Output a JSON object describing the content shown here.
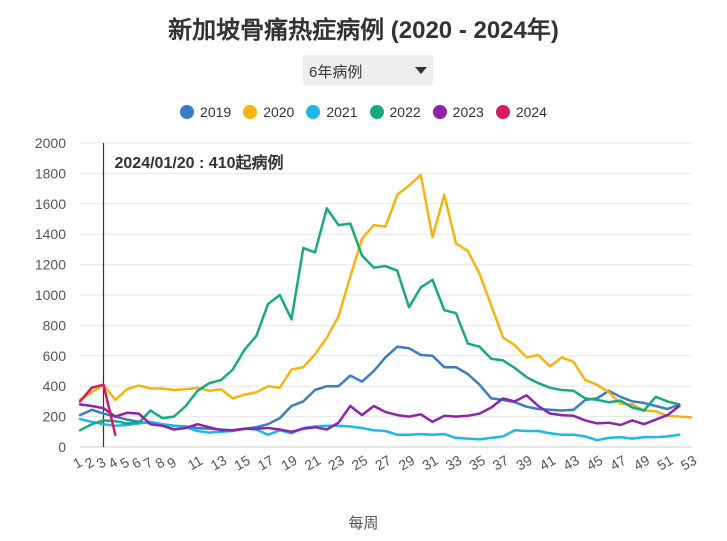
{
  "title": "新加坡骨痛热症病例 (2020 - 2024年)",
  "selector": {
    "value": "6年病例"
  },
  "colors": {
    "2019": "#3A7DC3",
    "2020": "#F7B30F",
    "2021": "#1FB6E8",
    "2022": "#18A97E",
    "2023": "#8E24AA",
    "2024": "#D81B60"
  },
  "chart_data": {
    "type": "line",
    "xlabel": "每周",
    "ylabel": "",
    "ylim": [
      0,
      2000
    ],
    "yticks": [
      0,
      200,
      400,
      600,
      800,
      1000,
      1200,
      1400,
      1600,
      1800,
      2000
    ],
    "xlim": [
      1,
      53
    ],
    "xticks": [
      1,
      2,
      3,
      4,
      5,
      6,
      7,
      8,
      9,
      11,
      13,
      15,
      17,
      19,
      21,
      23,
      25,
      27,
      29,
      31,
      33,
      35,
      37,
      39,
      41,
      43,
      45,
      47,
      49,
      51,
      53
    ],
    "grid": true,
    "legend": "top",
    "annotation": {
      "x": 3,
      "text": "2024/01/20 : 410起病例"
    },
    "series": [
      {
        "name": "2019",
        "x": [
          1,
          2,
          3,
          4,
          5,
          6,
          7,
          8,
          9,
          10,
          11,
          12,
          13,
          14,
          15,
          16,
          17,
          18,
          19,
          20,
          21,
          22,
          23,
          24,
          25,
          26,
          27,
          28,
          29,
          30,
          31,
          32,
          33,
          34,
          35,
          36,
          37,
          38,
          39,
          40,
          41,
          42,
          43,
          44,
          45,
          46,
          47,
          48,
          49,
          50,
          51,
          52
        ],
        "values": [
          210,
          245,
          220,
          200,
          180,
          165,
          155,
          150,
          140,
          135,
          125,
          120,
          115,
          110,
          120,
          130,
          150,
          190,
          270,
          300,
          375,
          400,
          400,
          470,
          430,
          500,
          590,
          660,
          650,
          605,
          600,
          525,
          525,
          480,
          410,
          320,
          310,
          295,
          265,
          250,
          245,
          240,
          245,
          310,
          320,
          370,
          330,
          300,
          290,
          270,
          250,
          280
        ]
      },
      {
        "name": "2020",
        "x": [
          1,
          2,
          3,
          4,
          5,
          6,
          7,
          8,
          9,
          10,
          11,
          12,
          13,
          14,
          15,
          16,
          17,
          18,
          19,
          20,
          21,
          22,
          23,
          24,
          25,
          26,
          27,
          28,
          29,
          30,
          31,
          32,
          33,
          34,
          35,
          36,
          37,
          38,
          39,
          40,
          41,
          42,
          43,
          44,
          45,
          46,
          47,
          48,
          49,
          50,
          51,
          52,
          53
        ],
        "values": [
          310,
          360,
          410,
          310,
          380,
          405,
          385,
          385,
          375,
          380,
          390,
          370,
          380,
          320,
          345,
          360,
          400,
          390,
          510,
          525,
          610,
          720,
          860,
          1120,
          1370,
          1460,
          1450,
          1660,
          1720,
          1790,
          1380,
          1660,
          1340,
          1290,
          1140,
          930,
          720,
          670,
          590,
          605,
          530,
          590,
          560,
          440,
          410,
          360,
          285,
          280,
          240,
          235,
          205,
          200,
          195
        ]
      },
      {
        "name": "2021",
        "x": [
          1,
          2,
          3,
          4,
          5,
          6,
          7,
          8,
          9,
          10,
          11,
          12,
          13,
          14,
          15,
          16,
          17,
          18,
          19,
          20,
          21,
          22,
          23,
          24,
          25,
          26,
          27,
          28,
          29,
          30,
          31,
          32,
          33,
          34,
          35,
          36,
          37,
          38,
          39,
          40,
          41,
          42,
          43,
          44,
          45,
          46,
          47,
          48,
          49,
          50,
          51,
          52
        ],
        "values": [
          185,
          165,
          150,
          140,
          145,
          155,
          165,
          150,
          140,
          130,
          105,
          95,
          100,
          105,
          120,
          115,
          80,
          110,
          90,
          125,
          135,
          140,
          140,
          135,
          125,
          110,
          105,
          80,
          80,
          85,
          80,
          85,
          60,
          55,
          50,
          60,
          70,
          110,
          105,
          105,
          90,
          80,
          80,
          70,
          45,
          60,
          65,
          55,
          65,
          65,
          70,
          80
        ]
      },
      {
        "name": "2022",
        "x": [
          1,
          2,
          3,
          4,
          5,
          6,
          7,
          8,
          9,
          10,
          11,
          12,
          13,
          14,
          15,
          16,
          17,
          18,
          19,
          20,
          21,
          22,
          23,
          24,
          25,
          26,
          27,
          28,
          29,
          30,
          31,
          32,
          33,
          34,
          35,
          36,
          37,
          38,
          39,
          40,
          41,
          42,
          43,
          44,
          45,
          46,
          47,
          48,
          49,
          50,
          51,
          52
        ],
        "values": [
          110,
          150,
          175,
          170,
          155,
          160,
          240,
          190,
          200,
          270,
          370,
          420,
          440,
          510,
          640,
          730,
          940,
          1000,
          840,
          1310,
          1280,
          1570,
          1460,
          1470,
          1260,
          1180,
          1190,
          1160,
          920,
          1050,
          1100,
          900,
          880,
          680,
          660,
          580,
          570,
          520,
          460,
          420,
          390,
          375,
          370,
          320,
          310,
          295,
          305,
          260,
          240,
          330,
          300,
          280
        ]
      },
      {
        "name": "2023",
        "x": [
          1,
          2,
          3,
          4,
          5,
          6,
          7,
          8,
          9,
          10,
          11,
          12,
          13,
          14,
          15,
          16,
          17,
          18,
          19,
          20,
          21,
          22,
          23,
          24,
          25,
          26,
          27,
          28,
          29,
          30,
          31,
          32,
          33,
          34,
          35,
          36,
          37,
          38,
          39,
          40,
          41,
          42,
          43,
          44,
          45,
          46,
          47,
          48,
          49,
          50,
          51,
          52
        ],
        "values": [
          280,
          270,
          255,
          200,
          225,
          220,
          150,
          140,
          115,
          125,
          150,
          130,
          110,
          110,
          120,
          120,
          125,
          115,
          100,
          120,
          130,
          115,
          160,
          270,
          210,
          270,
          230,
          210,
          200,
          215,
          165,
          205,
          200,
          205,
          220,
          260,
          320,
          300,
          340,
          270,
          220,
          210,
          205,
          175,
          155,
          160,
          145,
          175,
          150,
          180,
          210,
          270
        ]
      },
      {
        "name": "2024",
        "x": [
          1,
          2,
          3,
          4
        ],
        "values": [
          300,
          390,
          410,
          80
        ]
      }
    ]
  }
}
